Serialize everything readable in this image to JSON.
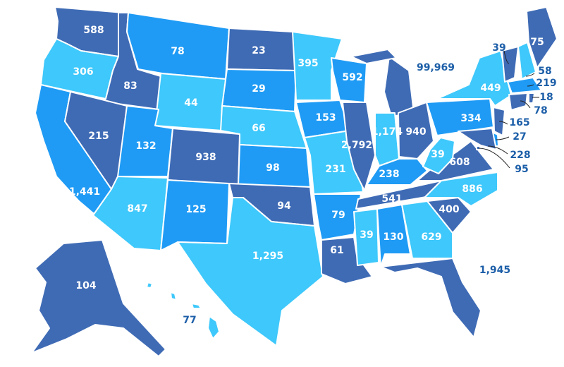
{
  "colors": {
    "dark": "#3f6bb5",
    "mid": "#1f9bf5",
    "light": "#3ec8fb",
    "outside_label": "#1d5fa8"
  },
  "states": [
    {
      "id": "WA",
      "value": "588",
      "shade": "dark"
    },
    {
      "id": "OR",
      "value": "306",
      "shade": "light"
    },
    {
      "id": "CA",
      "value": "1,441",
      "shade": "mid"
    },
    {
      "id": "ID",
      "value": "83",
      "shade": "dark"
    },
    {
      "id": "NV",
      "value": "215",
      "shade": "dark"
    },
    {
      "id": "MT",
      "value": "78",
      "shade": "mid"
    },
    {
      "id": "WY",
      "value": "44",
      "shade": "light"
    },
    {
      "id": "UT",
      "value": "132",
      "shade": "mid"
    },
    {
      "id": "CO",
      "value": "938",
      "shade": "dark"
    },
    {
      "id": "AZ",
      "value": "847",
      "shade": "light"
    },
    {
      "id": "NM",
      "value": "125",
      "shade": "mid"
    },
    {
      "id": "ND",
      "value": "23",
      "shade": "dark"
    },
    {
      "id": "SD",
      "value": "29",
      "shade": "mid"
    },
    {
      "id": "NE",
      "value": "66",
      "shade": "light"
    },
    {
      "id": "KS",
      "value": "98",
      "shade": "mid"
    },
    {
      "id": "OK",
      "value": "94",
      "shade": "dark"
    },
    {
      "id": "TX",
      "value": "1,295",
      "shade": "light"
    },
    {
      "id": "MN",
      "value": "395",
      "shade": "light"
    },
    {
      "id": "IA",
      "value": "153",
      "shade": "mid"
    },
    {
      "id": "MO",
      "value": "231",
      "shade": "light"
    },
    {
      "id": "AR",
      "value": "79",
      "shade": "mid"
    },
    {
      "id": "LA",
      "value": "61",
      "shade": "dark"
    },
    {
      "id": "WI",
      "value": "592",
      "shade": "mid"
    },
    {
      "id": "IL",
      "value": "2,792",
      "shade": "dark"
    },
    {
      "id": "MI",
      "value": "99,969",
      "shade": "dark"
    },
    {
      "id": "IN",
      "value": "1,174",
      "shade": "light"
    },
    {
      "id": "OH",
      "value": "940",
      "shade": "dark"
    },
    {
      "id": "KY",
      "value": "238",
      "shade": "mid"
    },
    {
      "id": "TN",
      "value": "541",
      "shade": "dark"
    },
    {
      "id": "MS",
      "value": "39",
      "shade": "light"
    },
    {
      "id": "AL",
      "value": "130",
      "shade": "mid"
    },
    {
      "id": "GA",
      "value": "629",
      "shade": "light"
    },
    {
      "id": "FL",
      "value": "1,945",
      "shade": "dark"
    },
    {
      "id": "SC",
      "value": "400",
      "shade": "dark"
    },
    {
      "id": "NC",
      "value": "886",
      "shade": "light"
    },
    {
      "id": "VA",
      "value": "608",
      "shade": "dark"
    },
    {
      "id": "WV",
      "value": "39",
      "shade": "light"
    },
    {
      "id": "PA",
      "value": "334",
      "shade": "mid"
    },
    {
      "id": "NY",
      "value": "449",
      "shade": "light"
    },
    {
      "id": "VT",
      "value": "39",
      "shade": "dark"
    },
    {
      "id": "NH",
      "value": "58",
      "shade": "light"
    },
    {
      "id": "ME",
      "value": "75",
      "shade": "dark"
    },
    {
      "id": "MA",
      "value": "219",
      "shade": "mid"
    },
    {
      "id": "RI",
      "value": "18",
      "shade": "dark"
    },
    {
      "id": "CT",
      "value": "78",
      "shade": "dark"
    },
    {
      "id": "NJ",
      "value": "165",
      "shade": "dark"
    },
    {
      "id": "DE",
      "value": "27",
      "shade": "mid"
    },
    {
      "id": "MD",
      "value": "228",
      "shade": "dark"
    },
    {
      "id": "DC",
      "value": "95",
      "shade": "dark"
    },
    {
      "id": "AK",
      "value": "104",
      "shade": "dark"
    },
    {
      "id": "HI",
      "value": "77",
      "shade": "light"
    }
  ]
}
